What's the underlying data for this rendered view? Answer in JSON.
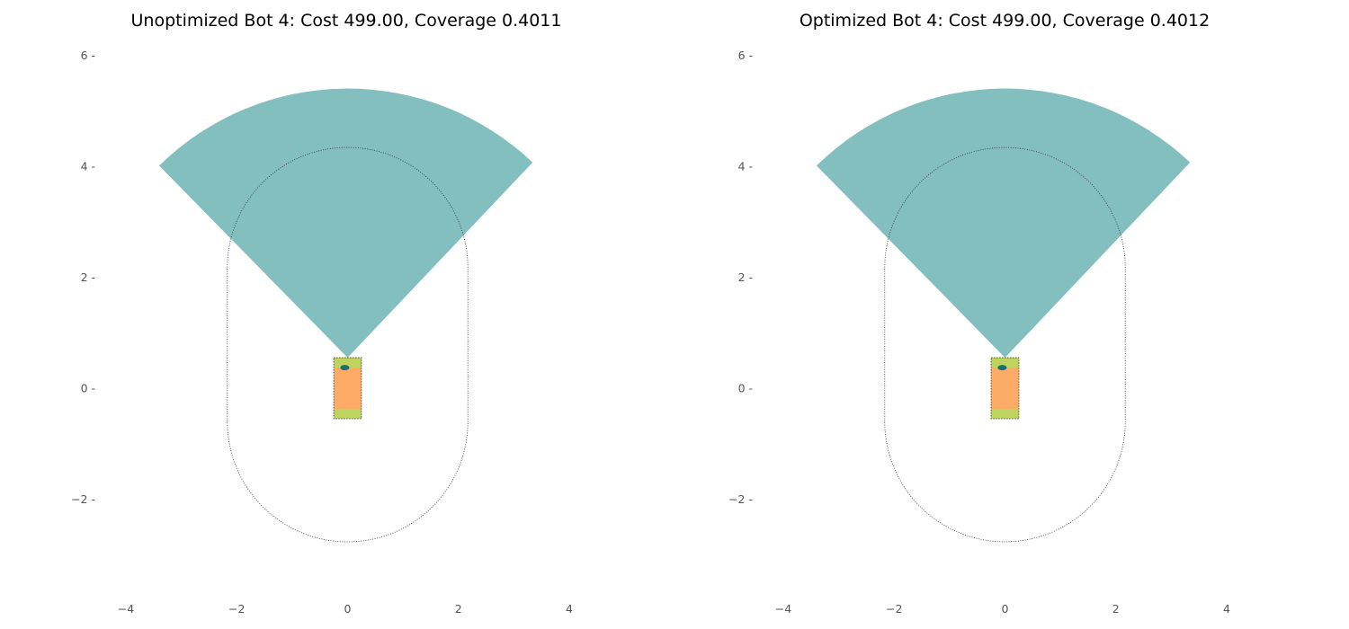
{
  "chart_data": [
    {
      "type": "other",
      "title": "Unoptimized Bot 4: Cost 499.00, Coverage 0.4011",
      "xlim": [
        -4.2,
        4.2
      ],
      "ylim": [
        -3.6,
        6.2
      ],
      "xticks": [
        -4,
        -2,
        0,
        2,
        4
      ],
      "yticks": [
        -2,
        0,
        2,
        4,
        6
      ],
      "xtick_labels": [
        "−4",
        "−2",
        "0",
        "2",
        "4"
      ],
      "ytick_labels": [
        "−2 -",
        "0 -",
        "2 -",
        "4 -",
        "6 -"
      ],
      "grid": false,
      "sensor_fov": {
        "origin": [
          0,
          0.55
        ],
        "radius": 4.85,
        "start_angle_deg": 46.5,
        "end_angle_deg": 134.5,
        "color": "#82bfbe"
      },
      "bot_body": {
        "x": [
          -0.25,
          0.25
        ],
        "y": [
          -0.55,
          0.55
        ],
        "body_color": "#fdab66",
        "end_color": "#bcd55f",
        "end_depth": 0.18
      },
      "sensor_marker": {
        "x": -0.05,
        "y": 0.37,
        "color": "#1a6f72"
      },
      "boundary_outline": {
        "cx": 0,
        "x_half_width": 2.17,
        "top_center_y": 2.17,
        "bottom_center_y": -0.6,
        "cap_radius": 2.17,
        "style": "dotted",
        "color": "#333333"
      }
    },
    {
      "type": "other",
      "title": "Optimized Bot 4: Cost 499.00, Coverage 0.4012",
      "xlim": [
        -4.2,
        4.2
      ],
      "ylim": [
        -3.6,
        6.2
      ],
      "xticks": [
        -4,
        -2,
        0,
        2,
        4
      ],
      "yticks": [
        -2,
        0,
        2,
        4,
        6
      ],
      "xtick_labels": [
        "−4",
        "−2",
        "0",
        "2",
        "4"
      ],
      "ytick_labels": [
        "−2 -",
        "0 -",
        "2 -",
        "4 -",
        "6 -"
      ],
      "grid": false,
      "sensor_fov": {
        "origin": [
          0,
          0.55
        ],
        "radius": 4.85,
        "start_angle_deg": 46.5,
        "end_angle_deg": 134.5,
        "color": "#82bfbe"
      },
      "bot_body": {
        "x": [
          -0.25,
          0.25
        ],
        "y": [
          -0.55,
          0.55
        ],
        "body_color": "#fdab66",
        "end_color": "#bcd55f",
        "end_depth": 0.18
      },
      "sensor_marker": {
        "x": -0.05,
        "y": 0.37,
        "color": "#1a6f72"
      },
      "boundary_outline": {
        "cx": 0,
        "x_half_width": 2.17,
        "top_center_y": 2.17,
        "bottom_center_y": -0.6,
        "cap_radius": 2.17,
        "style": "dotted",
        "color": "#333333"
      }
    }
  ]
}
